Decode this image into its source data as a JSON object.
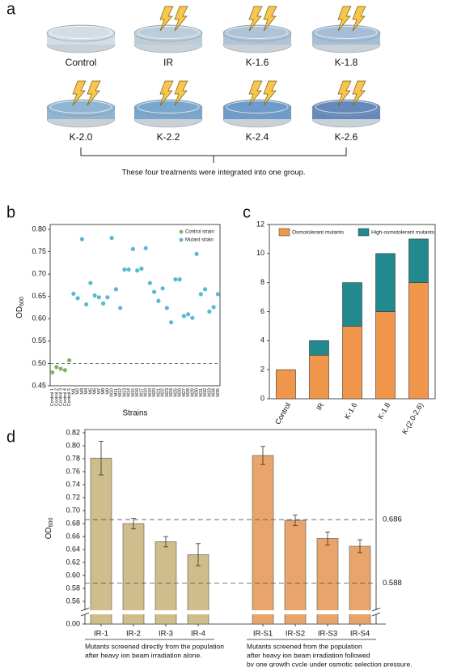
{
  "panel_a": {
    "label": "a",
    "dishes": [
      {
        "label": "Control",
        "irradiated": false,
        "color": "#d3dde6"
      },
      {
        "label": "IR",
        "irradiated": true,
        "color": "#bccdda"
      },
      {
        "label": "K-1.6",
        "irradiated": true,
        "color": "#adc3d6"
      },
      {
        "label": "K-1.8",
        "irradiated": true,
        "color": "#a5bed5"
      },
      {
        "label": "K-2.0",
        "irradiated": true,
        "color": "#8fb5d3"
      },
      {
        "label": "K-2.2",
        "irradiated": true,
        "color": "#7aa8cd"
      },
      {
        "label": "K-2.4",
        "irradiated": true,
        "color": "#6e9bc9"
      },
      {
        "label": "K-2.6",
        "irradiated": true,
        "color": "#6689bb"
      }
    ],
    "note": "These four treatments were integrated into one group."
  },
  "chart_data": [
    {
      "type": "scatter",
      "panel_label": "b",
      "x_label": "Strains",
      "y_label": "OD",
      "y_label_sub": "600",
      "categories": [
        "Control 1",
        "Control 2",
        "Control 3",
        "Control 4",
        "Control 5",
        "M1",
        "M2",
        "M3",
        "M4",
        "M5",
        "M6",
        "M7",
        "M8",
        "M9",
        "M10",
        "M11",
        "M12",
        "M13",
        "M14",
        "M15",
        "M16",
        "M17",
        "M18",
        "M19",
        "M20",
        "M21",
        "M22",
        "M23",
        "M24",
        "M25",
        "M26",
        "M27",
        "M28",
        "M29",
        "M30",
        "M31",
        "M32",
        "M33",
        "M34",
        "M35"
      ],
      "series": [
        {
          "name": "Control strain",
          "color": "#7fb36a",
          "values": [
            0.48,
            0.492,
            0.488,
            0.485,
            0.507,
            null,
            null,
            null,
            null,
            null,
            null,
            null,
            null,
            null,
            null,
            null,
            null,
            null,
            null,
            null,
            null,
            null,
            null,
            null,
            null,
            null,
            null,
            null,
            null,
            null,
            null,
            null,
            null,
            null,
            null,
            null,
            null,
            null,
            null,
            null
          ]
        },
        {
          "name": "Mutant strain",
          "color": "#5bb8d4",
          "values": [
            null,
            null,
            null,
            null,
            null,
            0.656,
            0.646,
            0.778,
            0.632,
            0.68,
            0.652,
            0.648,
            0.634,
            0.648,
            0.781,
            0.666,
            0.624,
            0.71,
            0.71,
            0.756,
            0.708,
            0.712,
            0.758,
            0.68,
            0.66,
            0.64,
            0.668,
            0.624,
            0.592,
            0.688,
            0.688,
            0.606,
            0.61,
            0.602,
            0.745,
            0.655,
            0.666,
            0.616,
            0.626,
            0.655
          ]
        }
      ],
      "ylim": [
        0.45,
        0.8
      ],
      "yticks": [
        0.45,
        {
          "value": 0.5,
          "label": "0.50"
        },
        0.55,
        {
          "value": 0.6,
          "label": "0.60"
        },
        0.65,
        {
          "value": 0.7,
          "label": "0.70"
        },
        0.75,
        {
          "value": 0.8,
          "label": "0.80"
        }
      ],
      "reference_line": 0.5,
      "legend": "top-right"
    },
    {
      "type": "stacked_bar",
      "panel_label": "c",
      "categories": [
        "Control",
        "IR",
        "K-1.6",
        "K-1.8",
        "K-(2.0-2.6)"
      ],
      "series": [
        {
          "name": "Osmotolerant mutants",
          "color": "#f0974b",
          "values": [
            2,
            3,
            5,
            6,
            8
          ]
        },
        {
          "name": "High-osmotolerant mutants",
          "color": "#22898f",
          "values": [
            0,
            1,
            3,
            4,
            3
          ]
        }
      ],
      "ylim": [
        0,
        12
      ],
      "yticks": [
        0,
        2,
        4,
        6,
        8,
        10,
        12
      ],
      "legend": "top"
    },
    {
      "type": "error_bar",
      "panel_label": "d",
      "y_label": "OD",
      "y_label_sub": "600",
      "categories": [
        "IR-1",
        "IR-2",
        "IR-3",
        "IR-4",
        "IR-S1",
        "IR-S2",
        "IR-S3",
        "IR-S4"
      ],
      "values": [
        0.781,
        0.68,
        0.652,
        0.632,
        0.785,
        0.685,
        0.657,
        0.645
      ],
      "errors": [
        0.026,
        0.008,
        0.008,
        0.017,
        0.014,
        0.008,
        0.01,
        0.01
      ],
      "colors": [
        "#cfbd8b",
        "#cfbd8b",
        "#cfbd8b",
        "#cfbd8b",
        "#e8a46a",
        "#e8a46a",
        "#e8a46a",
        "#e8a46a"
      ],
      "ylim": [
        0.55,
        0.82
      ],
      "axis_break": true,
      "yticks": [
        {
          "value": 0,
          "label": "0.00"
        },
        0.56,
        0.58,
        {
          "value": 0.6,
          "label": "0.60"
        },
        0.62,
        0.64,
        0.66,
        0.68,
        {
          "value": 0.7,
          "label": "0.70"
        },
        0.72,
        0.74,
        0.76,
        0.78,
        {
          "value": 0.8,
          "label": "0.80"
        },
        0.82
      ],
      "reference_lines": [
        0.686,
        0.588
      ],
      "groups": [
        {
          "lines": [
            "Mutants screened directly from the population",
            "after heavy ion beam irradiation alone."
          ]
        },
        {
          "lines": [
            "Mutants screened from the population",
            "after heavy ion beam irradiation followed",
            "by one growth cycle under osmotic selection pressure."
          ]
        }
      ]
    }
  ]
}
